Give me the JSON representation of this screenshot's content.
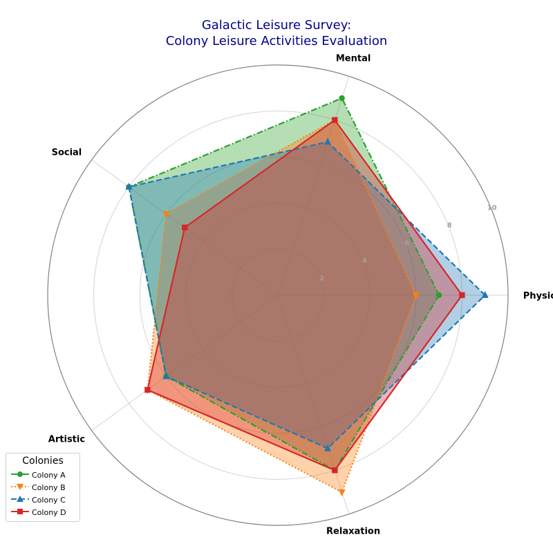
{
  "title_lines": [
    "Galactic Leisure Survey:",
    "Colony Leisure Activities Evaluation"
  ],
  "chart_data": {
    "type": "radar",
    "categories": [
      "Physical",
      "Mental",
      "Social",
      "Artistic",
      "Relaxation"
    ],
    "rlim": [
      0,
      10
    ],
    "r_ticks": [
      2,
      4,
      6,
      8,
      10
    ],
    "grid": true,
    "legend_title": "Colonies",
    "legend_position": "lower-left",
    "series": [
      {
        "name": "Colony A",
        "values": [
          7,
          9,
          8,
          6,
          8
        ],
        "color": "#2ca02c",
        "marker": "circle",
        "linestyle": "dashdot"
      },
      {
        "name": "Colony B",
        "values": [
          6,
          8,
          6,
          7,
          9
        ],
        "color": "#ff7f0e",
        "marker": "triangle-down",
        "linestyle": "dotted"
      },
      {
        "name": "Colony C",
        "values": [
          9,
          7,
          8,
          6,
          7
        ],
        "color": "#1f77b4",
        "marker": "triangle-up",
        "linestyle": "dashed"
      },
      {
        "name": "Colony D",
        "values": [
          8,
          8,
          5,
          7,
          8
        ],
        "color": "#d62728",
        "marker": "square",
        "linestyle": "solid"
      }
    ]
  }
}
